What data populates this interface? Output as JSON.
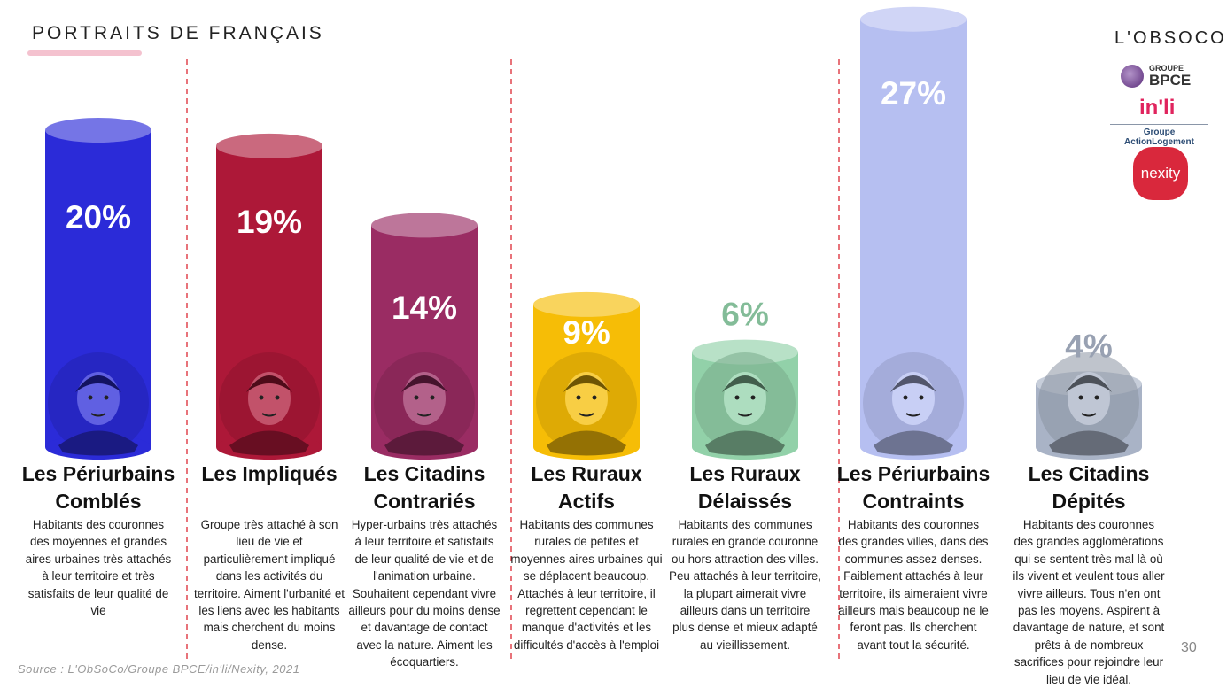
{
  "header": {
    "title": "PORTRAITS DE FRANÇAIS"
  },
  "logos": {
    "obsoco": "L'OBSOCO",
    "bpce_group": "GROUPE",
    "bpce": "BPCE",
    "inli": "in'li",
    "action_logement": "Groupe ActionLogement",
    "nexity": "nexity"
  },
  "footer": {
    "source": "Source : L'ObSoCo/Groupe BPCE/in'li/Nexity, 2021",
    "page": "30"
  },
  "chart_data": {
    "type": "bar",
    "unit": "%",
    "categories": [
      "Les Périurbains Comblés",
      "Les Impliqués",
      "Les Citadins Contrariés",
      "Les Ruraux Actifs",
      "Les Ruraux Délaissés",
      "Les Périurbains Contraints",
      "Les Citadins Dépités"
    ],
    "values": [
      20,
      19,
      14,
      9,
      6,
      27,
      4
    ],
    "labels": [
      "20%",
      "19%",
      "14%",
      "9%",
      "6%",
      "27%",
      "4%"
    ],
    "colors": [
      "#2b2bd8",
      "#ad1838",
      "#9a2c63",
      "#f6bd06",
      "#92d1a9",
      "#b6bff1",
      "#a9b3c6"
    ],
    "title": "",
    "xlabel": "",
    "ylabel": "",
    "segments": [
      {
        "title_1": "Les Périurbains",
        "title_2": "Comblés",
        "description": "Habitants des couronnes des moyennes et grandes aires urbaines très attachés à leur territoire et très satisfaits de leur qualité de vie"
      },
      {
        "title_1": "Les Impliqués",
        "title_2": "",
        "description": "Groupe très attaché à son lieu de vie et particulièrement impliqué dans les activités du territoire. Aiment l'urbanité et les liens avec les habitants mais cherchent du moins dense."
      },
      {
        "title_1": "Les Citadins",
        "title_2": "Contrariés",
        "description": "Hyper-urbains très attachés à leur territoire et satisfaits de leur qualité de vie et de l'animation urbaine. Souhaitent cependant vivre ailleurs pour du moins dense et davantage de contact avec la nature. Aiment les écoquartiers."
      },
      {
        "title_1": "Les Ruraux",
        "title_2": "Actifs",
        "description": "Habitants des communes rurales de petites et moyennes aires urbaines qui se déplacent beaucoup. Attachés à leur territoire, il regrettent cependant le manque d'activités et les difficultés d'accès à l'emploi"
      },
      {
        "title_1": "Les Ruraux",
        "title_2": "Délaissés",
        "description": "Habitants des communes rurales en grande couronne ou hors attraction des villes. Peu attachés à leur territoire, la plupart aimerait vivre ailleurs dans un territoire plus dense et mieux adapté au vieillissement."
      },
      {
        "title_1": "Les Périurbains",
        "title_2": "Contraints",
        "description": "Habitants des couronnes des grandes villes, dans des communes assez denses. Faiblement attachés à leur territoire, ils aimeraient vivre ailleurs mais beaucoup ne le feront pas. Ils cherchent avant tout la sécurité."
      },
      {
        "title_1": "Les Citadins",
        "title_2": "Dépités",
        "description": "Habitants des couronnes des grandes agglomérations qui se sentent très mal là où ils vivent et veulent tous aller vivre ailleurs. Tous n'en ont pas les moyens. Aspirent à davantage de nature, et sont prêts à de nombreux sacrifices pour rejoindre leur lieu de vie idéal."
      }
    ]
  }
}
